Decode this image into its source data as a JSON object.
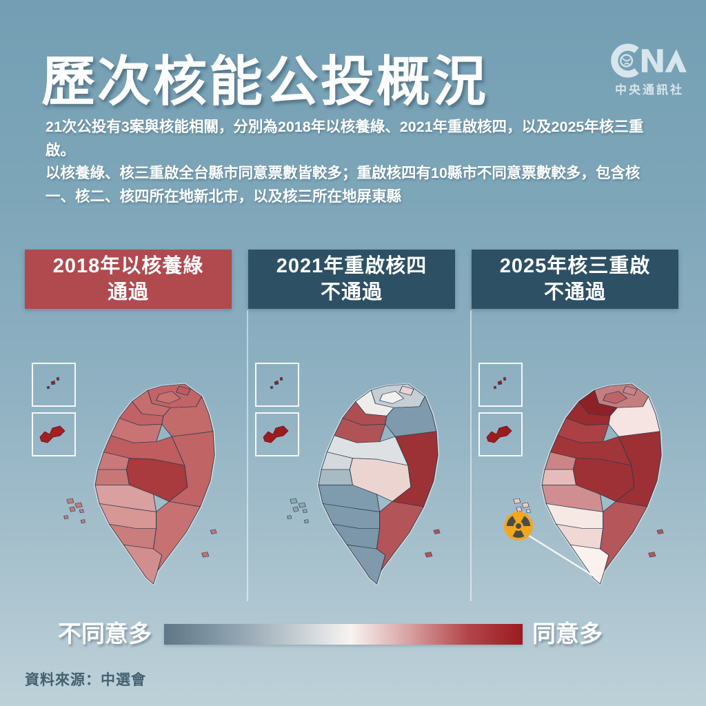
{
  "title": "歷次核能公投概況",
  "logo": {
    "brand": "CNA",
    "name": "中央通訊社"
  },
  "intro": {
    "line1": "21次公投有3案與核能相關，分別為2018年以核養綠、2021年重啟核四，以及2025年核三重啟。",
    "line2": "以核養綠、核三重啟全台縣市同意票數皆較多；重啟核四有10縣市不同意票數較多，包含核一、核二、核四所在地新北市，以及核三所在地屏東縣"
  },
  "panels": [
    {
      "year": "2018",
      "title_line1": "2018年以核養綠",
      "title_line2": "通過",
      "result": "通過",
      "header_color": "#b04a4f"
    },
    {
      "year": "2021",
      "title_line1": "2021年重啟核四",
      "title_line2": "不通過",
      "result": "不通過",
      "header_color": "#2d5064"
    },
    {
      "year": "2025",
      "title_line1": "2025年核三重啟",
      "title_line2": "不通過",
      "result": "不通過",
      "header_color": "#2d5064"
    }
  ],
  "legend": {
    "left_label": "不同意多",
    "right_label": "同意多",
    "gradient_stops": [
      "#5f7686 0%",
      "#8fa3b0 20%",
      "#c7d0d4 38%",
      "#f7f4f2 52%",
      "#d8a3a3 68%",
      "#b34449 85%",
      "#9a1b20 100%"
    ]
  },
  "source": "資料來源：中選會",
  "radiation": {
    "label": "核三所在地",
    "circle_color": "#f3a71e",
    "trefoil_color": "#4c4c45",
    "line_color": "rgba(255,255,255,0.85)"
  },
  "map_style": {
    "border_color": "#2b3c4e",
    "coast_halo": "#d3dce1"
  },
  "chart_data": {
    "type": "choropleth",
    "title": "歷次核能公投概況",
    "legend": {
      "low": "不同意多",
      "high": "同意多"
    },
    "maps": [
      {
        "referendum": "2018年以核養綠",
        "result": "通過",
        "regions": {
          "新北市": "#c26467",
          "臺北市": "#c8716f",
          "基隆市": "#bd5c60",
          "桃園市": "#c66d6e",
          "新竹縣市": "#c26266",
          "苗栗縣": "#c97374",
          "臺中市": "#bf5d60",
          "彰化縣": "#ca797a",
          "南投縣": "#a93a3d",
          "雲林縣": "#c97677",
          "嘉義縣市": "#d9a09f",
          "臺南市": "#d69795",
          "高雄市": "#c97d7d",
          "屏東縣": "#d28e8e",
          "宜蘭縣": "#c36a6b",
          "花蓮縣": "#c16465",
          "臺東縣": "#c77173",
          "澎湖縣": "#c87a7a",
          "金門縣": "#a02025",
          "連江縣": "#a02025"
        }
      },
      {
        "referendum": "2021年重啟核四",
        "result": "不通過",
        "regions": {
          "新北市": "#c6cfd6",
          "臺北市": "#f3f1ef",
          "基隆市": "#ecd3d2",
          "桃園市": "#efedea",
          "新竹縣市": "#ae4e53",
          "苗栗縣": "#b05356",
          "臺中市": "#dee1e3",
          "彰化縣": "#d3d9dc",
          "南投縣": "#ecd5d1",
          "雲林縣": "#a8bac4",
          "嘉義縣市": "#7f9cae",
          "臺南市": "#7e9aac",
          "高雄市": "#7b97a9",
          "屏東縣": "#8099ab",
          "宜蘭縣": "#7e9aac",
          "花蓮縣": "#9c3136",
          "臺東縣": "#b25458",
          "澎湖縣": "#8fa5b2",
          "金門縣": "#9a1c21",
          "連江縣": "#9a1c21"
        }
      },
      {
        "referendum": "2025年核三重啟",
        "result": "不通過",
        "regions": {
          "新北市": "#c57e80",
          "臺北市": "#bc6568",
          "基隆市": "#ca8486",
          "桃園市": "#8e2126",
          "新竹縣市": "#9a2b2f",
          "苗栗縣": "#ab4145",
          "臺中市": "#a23539",
          "彰化縣": "#cc8486",
          "南投縣": "#9e3135",
          "雲林縣": "#e6bcba",
          "嘉義縣市": "#d08e90",
          "臺南市": "#f6e8e5",
          "高雄市": "#f0d8d5",
          "屏東縣": "#fbf1ef",
          "宜蘭縣": "#f5e4e1",
          "花蓮縣": "#9c3034",
          "臺東縣": "#b5565a",
          "澎湖縣": "#ecc9c6",
          "金門縣": "#9a1c21",
          "連江縣": "#9a1c21"
        }
      }
    ]
  }
}
